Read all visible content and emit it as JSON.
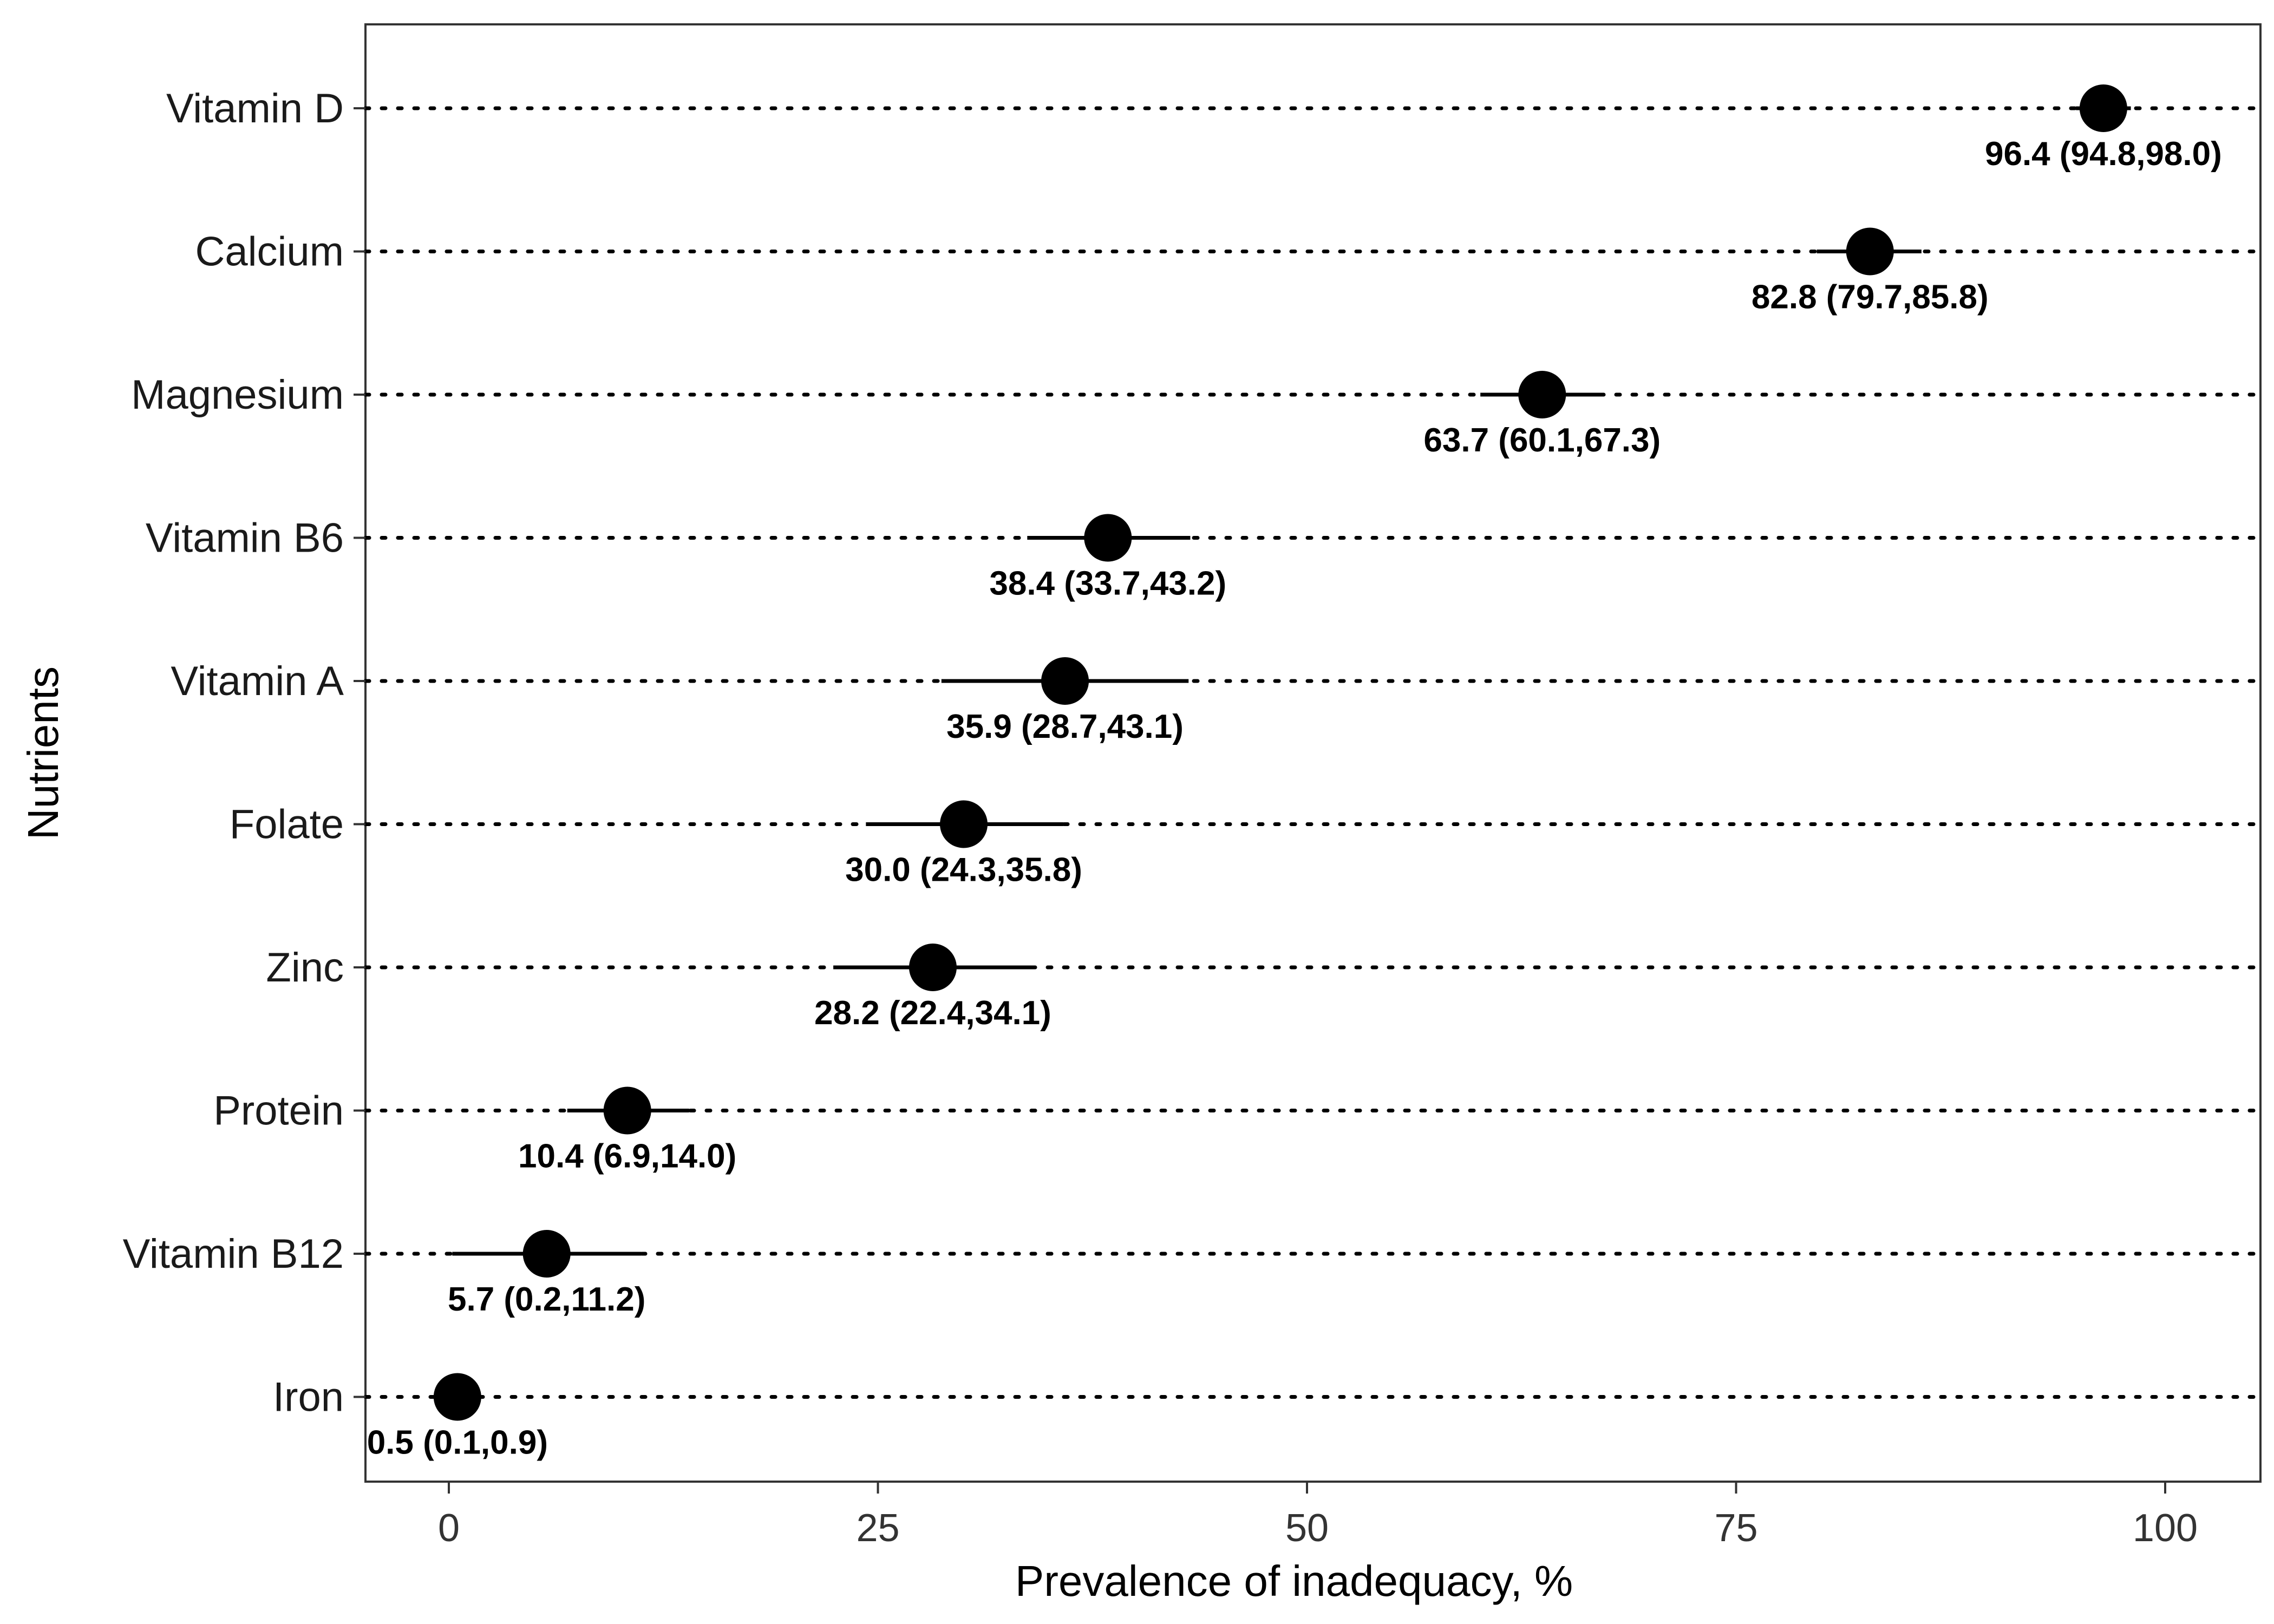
{
  "chart_data": {
    "type": "scatter",
    "subtype": "dot-plot-with-confidence-intervals",
    "xlabel": "Prevalence of inadequacy, %",
    "ylabel": "Nutrients",
    "xlim": [
      -5,
      105
    ],
    "x_ticks": [
      0,
      25,
      50,
      75,
      100
    ],
    "grid": "dotted horizontal guide lines per category",
    "legend": "none",
    "categories": [
      "Vitamin D",
      "Calcium",
      "Magnesium",
      "Vitamin B6",
      "Vitamin A",
      "Folate",
      "Zinc",
      "Protein",
      "Vitamin B12",
      "Iron"
    ],
    "points": [
      {
        "nutrient": "Vitamin D",
        "value": 96.4,
        "lower": 94.8,
        "upper": 98.0,
        "label": "96.4 (94.8,98.0)"
      },
      {
        "nutrient": "Calcium",
        "value": 82.8,
        "lower": 79.7,
        "upper": 85.8,
        "label": "82.8 (79.7,85.8)"
      },
      {
        "nutrient": "Magnesium",
        "value": 63.7,
        "lower": 60.1,
        "upper": 67.3,
        "label": "63.7 (60.1,67.3)"
      },
      {
        "nutrient": "Vitamin B6",
        "value": 38.4,
        "lower": 33.7,
        "upper": 43.2,
        "label": "38.4 (33.7,43.2)"
      },
      {
        "nutrient": "Vitamin A",
        "value": 35.9,
        "lower": 28.7,
        "upper": 43.1,
        "label": "35.9 (28.7,43.1)"
      },
      {
        "nutrient": "Folate",
        "value": 30.0,
        "lower": 24.3,
        "upper": 35.8,
        "label": "30.0 (24.3,35.8)"
      },
      {
        "nutrient": "Zinc",
        "value": 28.2,
        "lower": 22.4,
        "upper": 34.1,
        "label": "28.2 (22.4,34.1)"
      },
      {
        "nutrient": "Protein",
        "value": 10.4,
        "lower": 6.9,
        "upper": 14.0,
        "label": "10.4 (6.9,14.0)"
      },
      {
        "nutrient": "Vitamin B12",
        "value": 5.7,
        "lower": 0.2,
        "upper": 11.2,
        "label": "5.7 (0.2,11.2)"
      },
      {
        "nutrient": "Iron",
        "value": 0.5,
        "lower": 0.1,
        "upper": 0.9,
        "label": "0.5 (0.1,0.9)"
      }
    ],
    "colors": {
      "point": "#000000",
      "axis": "#333333",
      "guide": "#000000",
      "background": "#ffffff"
    }
  }
}
